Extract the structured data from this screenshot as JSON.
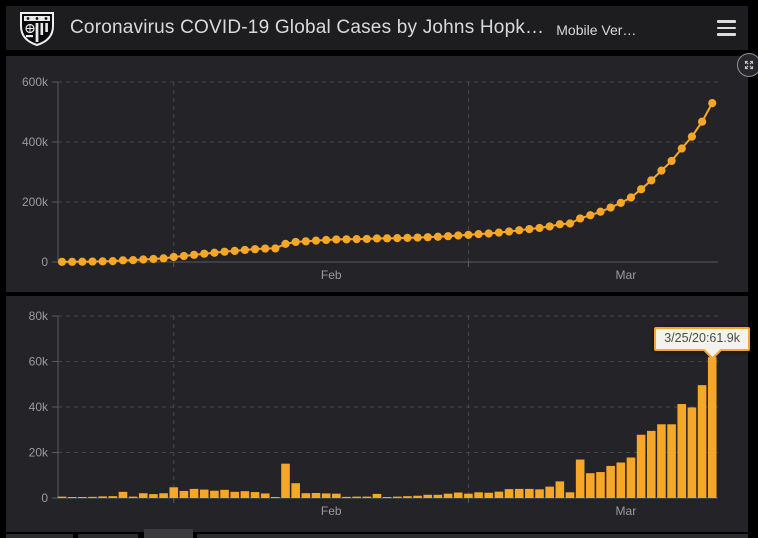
{
  "header": {
    "title": "Coronavirus COVID-19 Global Cases by Johns Hopk…",
    "subtitle": "Mobile Ver…",
    "logo_icon": "johns-hopkins-shield-icon",
    "menu_icon": "hamburger-menu-icon"
  },
  "controls": {
    "expand_icon": "expand-arrows-icon"
  },
  "colors": {
    "accent_orange": "#f7a728",
    "page_bg": "#000000",
    "header_bg": "#1d1d20",
    "panel_bg": "#242428",
    "axis_text": "#9b9b9e",
    "grid_line": "#47474b",
    "axis_line": "#5a5a5e",
    "tooltip_bg": "#f4f2ec",
    "tooltip_border": "#f7a728",
    "tooltip_text": "#4b4b4b"
  },
  "chart_data": [
    {
      "type": "line",
      "title": "",
      "series_name": "cumulative-confirmed-cases",
      "marker": "circle",
      "color": "#f7a728",
      "grid": "dashed",
      "ylim": [
        0,
        600000
      ],
      "yticks": [
        {
          "value": 0,
          "label": "0"
        },
        {
          "value": 200000,
          "label": "200k"
        },
        {
          "value": 400000,
          "label": "400k"
        },
        {
          "value": 600000,
          "label": "600k"
        }
      ],
      "x_gridlines": [
        "2/1/20",
        "3/1/20"
      ],
      "x_labels": [
        {
          "label": "Feb",
          "at": "2/16/20"
        },
        {
          "label": "Mar",
          "at": "3/16/20"
        }
      ],
      "x": [
        "1/21/20",
        "1/22/20",
        "1/23/20",
        "1/24/20",
        "1/25/20",
        "1/26/20",
        "1/27/20",
        "1/28/20",
        "1/29/20",
        "1/30/20",
        "1/31/20",
        "2/1/20",
        "2/2/20",
        "2/3/20",
        "2/4/20",
        "2/5/20",
        "2/6/20",
        "2/7/20",
        "2/8/20",
        "2/9/20",
        "2/10/20",
        "2/11/20",
        "2/12/20",
        "2/13/20",
        "2/14/20",
        "2/15/20",
        "2/16/20",
        "2/17/20",
        "2/18/20",
        "2/19/20",
        "2/20/20",
        "2/21/20",
        "2/22/20",
        "2/23/20",
        "2/24/20",
        "2/25/20",
        "2/26/20",
        "2/27/20",
        "2/28/20",
        "2/29/20",
        "3/1/20",
        "3/2/20",
        "3/3/20",
        "3/4/20",
        "3/5/20",
        "3/6/20",
        "3/7/20",
        "3/8/20",
        "3/9/20",
        "3/10/20",
        "3/11/20",
        "3/12/20",
        "3/13/20",
        "3/14/20",
        "3/15/20",
        "3/16/20",
        "3/17/20",
        "3/18/20",
        "3/19/20",
        "3/20/20",
        "3/21/20",
        "3/22/20",
        "3/23/20",
        "3/24/20",
        "3/25/20"
      ],
      "values": [
        555,
        654,
        941,
        1434,
        2118,
        2927,
        5578,
        6166,
        8234,
        9927,
        12038,
        16787,
        19881,
        23892,
        27635,
        30817,
        34391,
        37120,
        40150,
        42762,
        44802,
        45221,
        60368,
        66885,
        69030,
        71224,
        73258,
        75136,
        75639,
        76197,
        76819,
        78572,
        78958,
        79561,
        80406,
        81388,
        82746,
        84112,
        86011,
        88369,
        90306,
        92840,
        95120,
        97882,
        101784,
        105821,
        109795,
        113561,
        118592,
        125865,
        128343,
        145193,
        156094,
        167446,
        181527,
        197142,
        214910,
        242708,
        272166,
        304524,
        336953,
        378231,
        418041,
        467653,
        529591
      ]
    },
    {
      "type": "bar",
      "title": "",
      "series_name": "daily-new-cases",
      "unit": "thousands",
      "color": "#f7a728",
      "grid": "dashed",
      "ylim": [
        0,
        80
      ],
      "yticks": [
        {
          "value": 0,
          "label": "0"
        },
        {
          "value": 20,
          "label": "20k"
        },
        {
          "value": 40,
          "label": "40k"
        },
        {
          "value": 60,
          "label": "60k"
        },
        {
          "value": 80,
          "label": "80k"
        }
      ],
      "x_gridlines": [
        "2/1/20",
        "3/1/20"
      ],
      "x_labels": [
        {
          "label": "Feb",
          "at": "2/16/20"
        },
        {
          "label": "Mar",
          "at": "3/16/20"
        }
      ],
      "x": [
        "1/21/20",
        "1/22/20",
        "1/23/20",
        "1/24/20",
        "1/25/20",
        "1/26/20",
        "1/27/20",
        "1/28/20",
        "1/29/20",
        "1/30/20",
        "1/31/20",
        "2/1/20",
        "2/2/20",
        "2/3/20",
        "2/4/20",
        "2/5/20",
        "2/6/20",
        "2/7/20",
        "2/8/20",
        "2/9/20",
        "2/10/20",
        "2/11/20",
        "2/12/20",
        "2/13/20",
        "2/14/20",
        "2/15/20",
        "2/16/20",
        "2/17/20",
        "2/18/20",
        "2/19/20",
        "2/20/20",
        "2/21/20",
        "2/22/20",
        "2/23/20",
        "2/24/20",
        "2/25/20",
        "2/26/20",
        "2/27/20",
        "2/28/20",
        "2/29/20",
        "3/1/20",
        "3/2/20",
        "3/3/20",
        "3/4/20",
        "3/5/20",
        "3/6/20",
        "3/7/20",
        "3/8/20",
        "3/9/20",
        "3/10/20",
        "3/11/20",
        "3/12/20",
        "3/13/20",
        "3/14/20",
        "3/15/20",
        "3/16/20",
        "3/17/20",
        "3/18/20",
        "3/19/20",
        "3/20/20",
        "3/21/20",
        "3/22/20",
        "3/23/20",
        "3/24/20",
        "3/25/20"
      ],
      "values": [
        0.6,
        0.1,
        0.3,
        0.5,
        0.7,
        0.8,
        2.7,
        0.6,
        2.1,
        1.7,
        2.1,
        4.7,
        3.1,
        4.0,
        3.7,
        3.2,
        3.6,
        2.7,
        3.0,
        2.6,
        2.0,
        0.4,
        15.1,
        6.5,
        2.1,
        2.2,
        2.0,
        1.9,
        0.5,
        0.6,
        0.6,
        1.8,
        0.4,
        0.6,
        0.8,
        1.0,
        1.4,
        1.4,
        1.9,
        2.4,
        1.9,
        2.5,
        2.3,
        2.8,
        3.9,
        4.0,
        4.0,
        3.8,
        5.0,
        7.3,
        2.5,
        16.9,
        10.9,
        11.4,
        14.1,
        15.6,
        17.8,
        27.8,
        29.5,
        32.4,
        32.4,
        41.3,
        39.8,
        49.6,
        61.9
      ],
      "tooltip": {
        "text": "3/25/20:61.9k",
        "date": "3/25/20",
        "value": "61.9k"
      }
    }
  ]
}
